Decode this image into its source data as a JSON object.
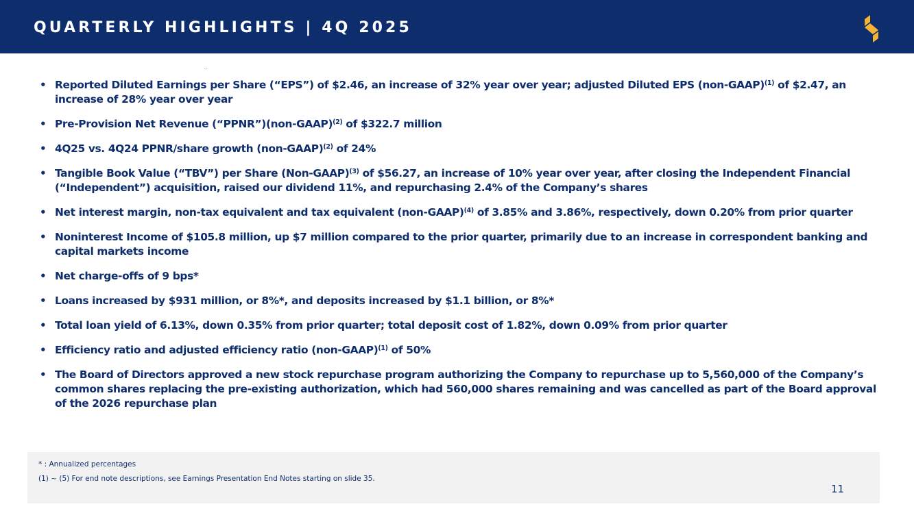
{
  "header": {
    "title": "QUARTERLY HIGHLIGHTS | 4Q 2025",
    "logo_icon": "brand-s-logo",
    "bg_color": "#0d2d6c",
    "logo_color": "#f5b335"
  },
  "bullets": [
    {
      "pre": "Reported Diluted Earnings per Share (“EPS”) of $2.46, an increase of 32% year over year; adjusted Diluted EPS (non-GAAP)",
      "sup": "(1)",
      "post": " of $2.47, an increase of 28% year over year"
    },
    {
      "pre": "Pre-Provision Net Revenue (“PPNR”)(non-GAAP)",
      "sup": "(2)",
      "post": " of $322.7 million"
    },
    {
      "pre": "4Q25 vs. 4Q24 PPNR/share growth (non-GAAP)",
      "sup": "(2)",
      "post": " of 24%"
    },
    {
      "pre": "Tangible Book Value (“TBV”) per Share (Non-GAAP)",
      "sup": "(3)",
      "post": " of $56.27, an increase of 10% year over year, after closing the Independent Financial (“Independent”) acquisition, raised our dividend 11%, and repurchasing 2.4% of the Company’s shares"
    },
    {
      "pre": "Net interest margin, non-tax equivalent and tax equivalent (non-GAAP)",
      "sup": "(4)",
      "post": " of 3.85% and 3.86%, respectively, down 0.20% from prior quarter"
    },
    {
      "pre": "Noninterest Income of $105.8 million, up $7 million compared to the prior quarter, primarily due to an increase in correspondent banking and capital markets income",
      "sup": "",
      "post": ""
    },
    {
      "pre": "Net charge-offs of 9 bps*",
      "sup": "",
      "post": ""
    },
    {
      "pre": "Loans increased by $931 million, or 8%*, and deposits increased by $1.1 billion, or 8%*",
      "sup": "",
      "post": ""
    },
    {
      "pre": "Total loan yield of 6.13%, down 0.35% from prior quarter; total deposit cost of 1.82%, down 0.09% from prior quarter",
      "sup": "",
      "post": ""
    },
    {
      "pre": "Efficiency ratio and adjusted efficiency ratio (non-GAAP)",
      "sup": "(1)",
      "post": " of 50%"
    },
    {
      "pre": "The Board of Directors approved a new stock repurchase program authorizing the Company to repurchase up to 5,560,000 of the Company’s common shares replacing the pre-existing authorization, which had 560,000 shares remaining and was cancelled as part of the Board approval of the 2026 repurchase plan",
      "sup": "",
      "post": ""
    }
  ],
  "footer": {
    "note_1": "* : Annualized percentages",
    "note_2": "(1) ~ (5)  For end note descriptions, see Earnings Presentation End Notes starting on slide 35.",
    "page_number": "11"
  }
}
